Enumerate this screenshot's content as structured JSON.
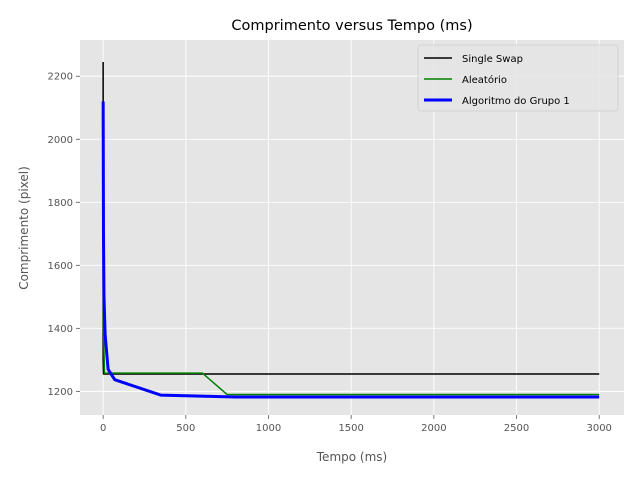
{
  "chart_data": {
    "type": "line",
    "title": "Comprimento versus Tempo (ms)",
    "xlabel": "Tempo (ms)",
    "ylabel": "Comprimento (pixel)",
    "xlim": [
      -140,
      3150
    ],
    "ylim": [
      1125,
      2315
    ],
    "xticks": [
      0,
      500,
      1000,
      1500,
      2000,
      2500,
      3000
    ],
    "yticks": [
      1200,
      1400,
      1600,
      1800,
      2000,
      2200
    ],
    "grid": true,
    "legend_position": "top-right",
    "series": [
      {
        "name": "Single Swap",
        "color": "#000000",
        "x": [
          0,
          0,
          2,
          3000
        ],
        "y": [
          2245,
          1300,
          1255,
          1255
        ]
      },
      {
        "name": "Aleatório",
        "color": "#008000",
        "x": [
          0,
          2,
          8,
          600,
          750,
          3000
        ],
        "y": [
          2100,
          1400,
          1258,
          1258,
          1190,
          1190
        ]
      },
      {
        "name": "Algoritmo do Grupo 1",
        "color": "#0000ff",
        "x": [
          0,
          2,
          5,
          12,
          30,
          70,
          350,
          800,
          3000
        ],
        "y": [
          2120,
          1700,
          1500,
          1380,
          1270,
          1237,
          1188,
          1182,
          1182
        ]
      }
    ]
  }
}
